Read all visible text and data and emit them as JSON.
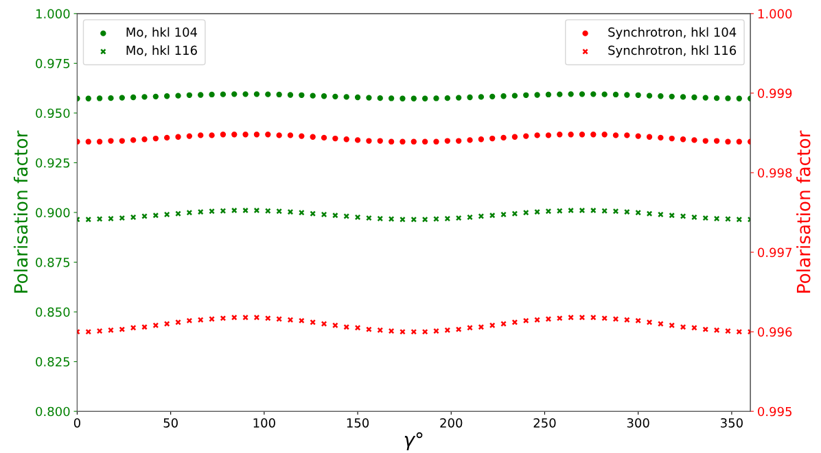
{
  "chart_data": {
    "type": "scatter",
    "xlabel": "γ°",
    "ylabel": "Polarisation factor",
    "y2label": "Polarisation factor",
    "x": [
      0,
      6,
      12,
      18,
      24,
      30,
      36,
      42,
      48,
      54,
      60,
      66,
      72,
      78,
      84,
      90,
      96,
      102,
      108,
      114,
      120,
      126,
      132,
      138,
      144,
      150,
      156,
      162,
      168,
      174,
      180,
      186,
      192,
      198,
      204,
      210,
      216,
      222,
      228,
      234,
      240,
      246,
      252,
      258,
      264,
      270,
      276,
      282,
      288,
      294,
      300,
      306,
      312,
      318,
      324,
      330,
      336,
      342,
      348,
      354,
      360
    ],
    "series": [
      {
        "name": "Mo, hkl 104",
        "color": "#008000",
        "marker": "circle",
        "values": [
          0.9573,
          0.9573,
          0.9574,
          0.9575,
          0.9577,
          0.9579,
          0.9581,
          0.9583,
          0.9585,
          0.9587,
          0.959,
          0.9591,
          0.9593,
          0.9594,
          0.9595,
          0.9595,
          0.9595,
          0.9594,
          0.9593,
          0.9591,
          0.959,
          0.9587,
          0.9585,
          0.9583,
          0.9581,
          0.9579,
          0.9577,
          0.9575,
          0.9574,
          0.9573,
          0.9573,
          0.9573,
          0.9574,
          0.9575,
          0.9577,
          0.9579,
          0.9581,
          0.9583,
          0.9585,
          0.9587,
          0.959,
          0.9591,
          0.9593,
          0.9594,
          0.9595,
          0.9595,
          0.9595,
          0.9594,
          0.9593,
          0.9591,
          0.959,
          0.9587,
          0.9585,
          0.9583,
          0.9581,
          0.9579,
          0.9577,
          0.9575,
          0.9574,
          0.9573,
          0.9573
        ]
      },
      {
        "name": "Mo, hkl 116",
        "color": "#008000",
        "marker": "cross",
        "values": [
          0.8965,
          0.8965,
          0.8967,
          0.8969,
          0.8972,
          0.8976,
          0.8981,
          0.8985,
          0.899,
          0.8994,
          0.8999,
          0.9003,
          0.9006,
          0.9008,
          0.901,
          0.901,
          0.901,
          0.9008,
          0.9006,
          0.9003,
          0.8999,
          0.8994,
          0.899,
          0.8985,
          0.8981,
          0.8976,
          0.8972,
          0.8969,
          0.8967,
          0.8965,
          0.8965,
          0.8965,
          0.8967,
          0.8969,
          0.8972,
          0.8976,
          0.8981,
          0.8985,
          0.899,
          0.8994,
          0.8999,
          0.9003,
          0.9006,
          0.9008,
          0.901,
          0.901,
          0.901,
          0.9008,
          0.9006,
          0.9003,
          0.8999,
          0.8994,
          0.899,
          0.8985,
          0.8981,
          0.8976,
          0.8972,
          0.8969,
          0.8967,
          0.8965,
          0.8965
        ]
      },
      {
        "name": "Synchrotron, hkl 104",
        "color": "#ff0000",
        "marker": "circle",
        "axis": "y2",
        "values": [
          0.99839,
          0.99839,
          0.99839,
          0.9984,
          0.9984,
          0.99841,
          0.99842,
          0.99843,
          0.99844,
          0.99845,
          0.99846,
          0.99847,
          0.99847,
          0.99848,
          0.99848,
          0.99848,
          0.99848,
          0.99848,
          0.99847,
          0.99847,
          0.99846,
          0.99845,
          0.99844,
          0.99843,
          0.99842,
          0.99841,
          0.9984,
          0.9984,
          0.99839,
          0.99839,
          0.99839,
          0.99839,
          0.99839,
          0.9984,
          0.9984,
          0.99841,
          0.99842,
          0.99843,
          0.99844,
          0.99845,
          0.99846,
          0.99847,
          0.99847,
          0.99848,
          0.99848,
          0.99848,
          0.99848,
          0.99848,
          0.99847,
          0.99847,
          0.99846,
          0.99845,
          0.99844,
          0.99843,
          0.99842,
          0.99841,
          0.9984,
          0.9984,
          0.99839,
          0.99839,
          0.99839
        ]
      },
      {
        "name": "Synchrotron, hkl 116",
        "color": "#ff0000",
        "marker": "cross",
        "axis": "y2",
        "values": [
          0.996,
          0.996,
          0.99601,
          0.99602,
          0.99603,
          0.99605,
          0.99606,
          0.99608,
          0.9961,
          0.99612,
          0.99614,
          0.99615,
          0.99616,
          0.99617,
          0.99618,
          0.99618,
          0.99618,
          0.99617,
          0.99616,
          0.99615,
          0.99614,
          0.99612,
          0.9961,
          0.99608,
          0.99606,
          0.99605,
          0.99603,
          0.99602,
          0.99601,
          0.996,
          0.996,
          0.996,
          0.99601,
          0.99602,
          0.99603,
          0.99605,
          0.99606,
          0.99608,
          0.9961,
          0.99612,
          0.99614,
          0.99615,
          0.99616,
          0.99617,
          0.99618,
          0.99618,
          0.99618,
          0.99617,
          0.99616,
          0.99615,
          0.99614,
          0.99612,
          0.9961,
          0.99608,
          0.99606,
          0.99605,
          0.99603,
          0.99602,
          0.99601,
          0.996,
          0.996
        ]
      }
    ],
    "xlim": [
      0,
      360
    ],
    "xticks": [
      0,
      50,
      100,
      150,
      200,
      250,
      300,
      350
    ],
    "ylim": [
      0.8,
      1.0
    ],
    "yticks": [
      {
        "value": 0.8,
        "label": "0.800"
      },
      {
        "value": 0.825,
        "label": "0.825"
      },
      {
        "value": 0.85,
        "label": "0.850"
      },
      {
        "value": 0.875,
        "label": "0.875"
      },
      {
        "value": 0.9,
        "label": "0.900"
      },
      {
        "value": 0.925,
        "label": "0.925"
      },
      {
        "value": 0.95,
        "label": "0.950"
      },
      {
        "value": 0.975,
        "label": "0.975"
      },
      {
        "value": 1.0,
        "label": "1.000"
      }
    ],
    "y2lim": [
      0.995,
      1.0
    ],
    "y2ticks": [
      0.995,
      0.996,
      0.997,
      0.998,
      0.999,
      {
        "value": 1.0,
        "label": "1.000"
      }
    ],
    "legend": "top left",
    "grid": false
  }
}
